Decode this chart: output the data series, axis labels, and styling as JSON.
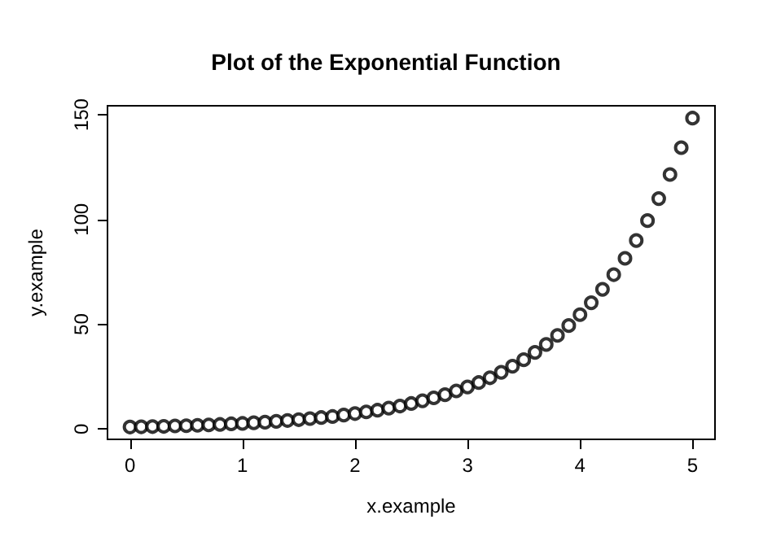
{
  "chart_data": {
    "type": "scatter",
    "title": "Plot of the Exponential Function",
    "xlabel": "x.example",
    "ylabel": "y.example",
    "x": [
      0,
      0.1,
      0.2,
      0.3,
      0.4,
      0.5,
      0.6,
      0.7,
      0.8,
      0.9,
      1,
      1.1,
      1.2,
      1.3,
      1.4,
      1.5,
      1.6,
      1.7,
      1.8,
      1.9,
      2,
      2.1,
      2.2,
      2.3,
      2.4,
      2.5,
      2.6,
      2.7,
      2.8,
      2.9,
      3,
      3.1,
      3.2,
      3.3,
      3.4,
      3.5,
      3.6,
      3.7,
      3.8,
      3.9,
      4,
      4.1,
      4.2,
      4.3,
      4.4,
      4.5,
      4.6,
      4.7,
      4.8,
      4.9,
      5
    ],
    "series": [
      {
        "color": "#000000",
        "values": [
          1,
          1.1,
          1.2,
          1.3,
          1.5,
          1.6,
          1.8,
          2,
          2.2,
          2.5,
          2.7,
          3,
          3.3,
          3.7,
          4.1,
          4.5,
          5,
          5.5,
          6,
          6.7,
          7.4,
          8.2,
          9,
          10,
          11,
          12.2,
          13.5,
          14.9,
          16.4,
          18.2,
          20.1,
          22.2,
          24.5,
          27.1,
          30,
          33.1,
          36.6,
          40.4,
          44.7,
          49.4,
          54.6,
          60.3,
          66.7,
          73.7,
          81.5,
          90,
          99.5,
          110,
          121.5,
          134.3,
          148.4
        ]
      }
    ],
    "xlim": [
      -0.2,
      5.2
    ],
    "xticks": [
      0,
      1,
      2,
      3,
      4,
      5
    ],
    "ylim": [
      -4.9,
      154.3
    ],
    "yticks": [
      0,
      50,
      100,
      150
    ],
    "marker": "circle",
    "grid": false
  }
}
